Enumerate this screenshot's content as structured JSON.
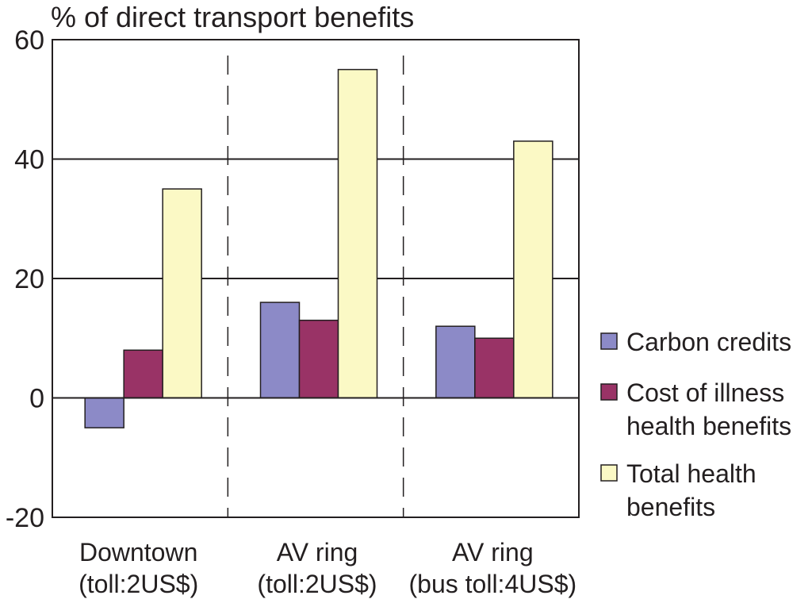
{
  "chart_data": {
    "type": "bar",
    "title": "% of direct transport benefits",
    "xlabel": "",
    "ylabel": "",
    "categories": [
      [
        "Downtown",
        "(toll:2US$)"
      ],
      [
        "AV ring",
        "(toll:2US$)"
      ],
      [
        "AV ring",
        "(bus toll:4US$)"
      ]
    ],
    "series": [
      {
        "name": "Carbon credits",
        "values": [
          -5,
          16,
          12
        ],
        "color": "#8c8ac7"
      },
      {
        "name": "Cost of illness health benefits",
        "legend_lines": [
          "Cost of illness",
          "health benefits"
        ],
        "values": [
          8,
          13,
          10
        ],
        "color": "#993366"
      },
      {
        "name": "Total health benefits",
        "legend_lines": [
          "Total health",
          "benefits"
        ],
        "values": [
          35,
          55,
          43
        ],
        "color": "#fbf9c5"
      }
    ],
    "ylim": [
      -20,
      60
    ],
    "yticks": [
      -20,
      0,
      20,
      40,
      60
    ],
    "grid": true,
    "category_separators": "dashed",
    "legend_position": "right"
  }
}
